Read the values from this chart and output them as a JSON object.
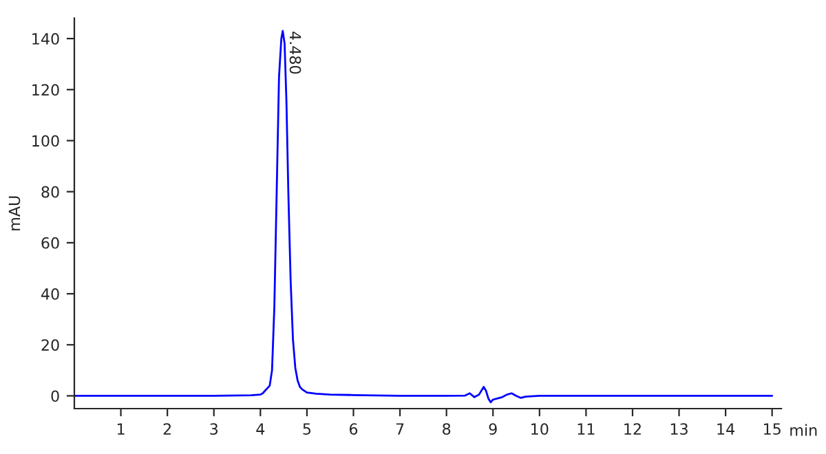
{
  "chart_data": {
    "type": "line",
    "xlabel": "min",
    "ylabel": "mAU",
    "annotations": [
      {
        "text": "4.480",
        "x": 4.48,
        "y": 143
      }
    ],
    "xlim": [
      0,
      15.2
    ],
    "ylim": [
      -5,
      148
    ],
    "xticks": [
      1,
      2,
      3,
      4,
      5,
      6,
      7,
      8,
      9,
      10,
      11,
      12,
      13,
      14,
      15
    ],
    "yticks": [
      0,
      20,
      40,
      60,
      80,
      100,
      120,
      140
    ],
    "grid": false,
    "legend": false,
    "marker": "none",
    "line_style": "solid",
    "series": [
      {
        "color": "#0000ff",
        "x": [
          0,
          1,
          2,
          3,
          3.8,
          4.0,
          4.05,
          4.1,
          4.15,
          4.2,
          4.25,
          4.3,
          4.35,
          4.4,
          4.45,
          4.48,
          4.52,
          4.56,
          4.6,
          4.65,
          4.7,
          4.75,
          4.8,
          4.85,
          4.9,
          5.0,
          5.2,
          5.5,
          6,
          7,
          8,
          8.4,
          8.5,
          8.6,
          8.7,
          8.8,
          8.85,
          8.9,
          8.95,
          9.0,
          9.1,
          9.2,
          9.3,
          9.4,
          9.5,
          9.6,
          9.7,
          10,
          11,
          12,
          13,
          14,
          15
        ],
        "values": [
          0,
          0,
          0,
          0,
          0.2,
          0.5,
          1,
          2,
          3,
          4,
          10,
          35,
          80,
          125,
          140,
          143,
          138,
          115,
          80,
          45,
          22,
          11,
          6,
          3.5,
          2.5,
          1.3,
          0.8,
          0.5,
          0.3,
          0,
          0,
          0.1,
          1,
          -0.5,
          0.5,
          3.5,
          2,
          -1,
          -2.5,
          -1.5,
          -1,
          -0.5,
          0.5,
          1,
          0,
          -0.8,
          -0.3,
          0,
          0,
          0,
          0,
          0,
          0
        ]
      }
    ]
  }
}
